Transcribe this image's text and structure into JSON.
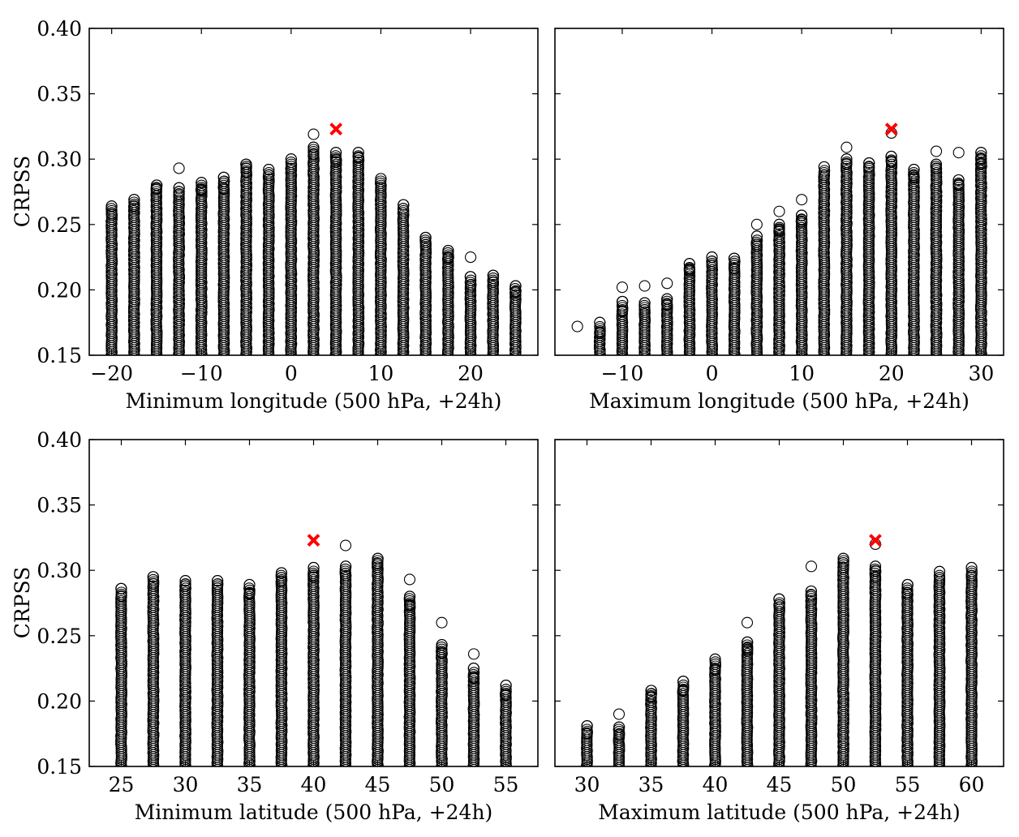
{
  "marker_colors": {
    "points": "#000000",
    "best": "#ff0000"
  },
  "chart_data": [
    {
      "type": "scatter",
      "panel": "top-left",
      "xlabel": "Minimum longitude (500 hPa, +24h)",
      "ylabel": "CRPSS",
      "xlim": [
        -22.5,
        27.5
      ],
      "ylim": [
        0.15,
        0.4
      ],
      "xticks": [
        -20,
        -10,
        0,
        10,
        20
      ],
      "yticks": [
        0.15,
        0.2,
        0.25,
        0.3,
        0.35,
        0.4
      ],
      "grid": false,
      "series": [
        {
          "marker": "open-circle",
          "columns": [
            {
              "x": -20.0,
              "top": 0.264,
              "outliers": []
            },
            {
              "x": -17.5,
              "top": 0.269,
              "outliers": []
            },
            {
              "x": -15.0,
              "top": 0.28,
              "outliers": []
            },
            {
              "x": -12.5,
              "top": 0.278,
              "outliers": [
                0.293
              ]
            },
            {
              "x": -10.0,
              "top": 0.282,
              "outliers": []
            },
            {
              "x": -7.5,
              "top": 0.286,
              "outliers": []
            },
            {
              "x": -5.0,
              "top": 0.296,
              "outliers": []
            },
            {
              "x": -2.5,
              "top": 0.292,
              "outliers": []
            },
            {
              "x": 0.0,
              "top": 0.3,
              "outliers": []
            },
            {
              "x": 2.5,
              "top": 0.309,
              "outliers": [
                0.319
              ]
            },
            {
              "x": 5.0,
              "top": 0.305,
              "outliers": []
            },
            {
              "x": 7.5,
              "top": 0.305,
              "outliers": []
            },
            {
              "x": 10.0,
              "top": 0.285,
              "outliers": []
            },
            {
              "x": 12.5,
              "top": 0.265,
              "outliers": []
            },
            {
              "x": 15.0,
              "top": 0.24,
              "outliers": []
            },
            {
              "x": 17.5,
              "top": 0.23,
              "outliers": []
            },
            {
              "x": 20.0,
              "top": 0.21,
              "outliers": [
                0.225
              ]
            },
            {
              "x": 22.5,
              "top": 0.211,
              "outliers": []
            },
            {
              "x": 25.0,
              "top": 0.203,
              "outliers": []
            }
          ]
        }
      ],
      "best": {
        "x": 5.0,
        "y": 0.323
      }
    },
    {
      "type": "scatter",
      "panel": "top-right",
      "xlabel": "Maximum longitude (500 hPa, +24h)",
      "ylabel": "",
      "xlim": [
        -17.5,
        32.5
      ],
      "ylim": [
        0.15,
        0.4
      ],
      "xticks": [
        -10,
        0,
        10,
        20,
        30
      ],
      "yticks": [
        0.15,
        0.2,
        0.25,
        0.3,
        0.35,
        0.4
      ],
      "grid": false,
      "series": [
        {
          "marker": "open-circle",
          "columns": [
            {
              "x": -15.0,
              "top": null,
              "outliers": [
                0.172
              ]
            },
            {
              "x": -12.5,
              "top": 0.175,
              "outliers": []
            },
            {
              "x": -10.0,
              "top": 0.191,
              "outliers": [
                0.202
              ]
            },
            {
              "x": -7.5,
              "top": 0.19,
              "outliers": [
                0.203
              ]
            },
            {
              "x": -5.0,
              "top": 0.193,
              "outliers": [
                0.205
              ]
            },
            {
              "x": -2.5,
              "top": 0.22,
              "outliers": []
            },
            {
              "x": 0.0,
              "top": 0.225,
              "outliers": []
            },
            {
              "x": 2.5,
              "top": 0.224,
              "outliers": []
            },
            {
              "x": 5.0,
              "top": 0.241,
              "outliers": [
                0.25
              ]
            },
            {
              "x": 7.5,
              "top": 0.25,
              "outliers": [
                0.26
              ]
            },
            {
              "x": 10.0,
              "top": 0.257,
              "outliers": [
                0.269
              ]
            },
            {
              "x": 12.5,
              "top": 0.294,
              "outliers": []
            },
            {
              "x": 15.0,
              "top": 0.3,
              "outliers": [
                0.309
              ]
            },
            {
              "x": 17.5,
              "top": 0.297,
              "outliers": []
            },
            {
              "x": 20.0,
              "top": 0.302,
              "outliers": [
                0.32
              ]
            },
            {
              "x": 22.5,
              "top": 0.292,
              "outliers": []
            },
            {
              "x": 25.0,
              "top": 0.296,
              "outliers": [
                0.306
              ]
            },
            {
              "x": 27.5,
              "top": 0.284,
              "outliers": [
                0.305
              ]
            },
            {
              "x": 30.0,
              "top": 0.305,
              "outliers": []
            }
          ]
        }
      ],
      "best": {
        "x": 20.0,
        "y": 0.323
      }
    },
    {
      "type": "scatter",
      "panel": "bottom-left",
      "xlabel": "Minimum latitude (500 hPa, +24h)",
      "ylabel": "CRPSS",
      "xlim": [
        22.5,
        57.5
      ],
      "ylim": [
        0.15,
        0.4
      ],
      "xticks": [
        25,
        30,
        35,
        40,
        45,
        50,
        55
      ],
      "yticks": [
        0.15,
        0.2,
        0.25,
        0.3,
        0.35,
        0.4
      ],
      "grid": false,
      "series": [
        {
          "marker": "open-circle",
          "columns": [
            {
              "x": 25.0,
              "top": 0.286,
              "outliers": []
            },
            {
              "x": 27.5,
              "top": 0.295,
              "outliers": []
            },
            {
              "x": 30.0,
              "top": 0.292,
              "outliers": []
            },
            {
              "x": 32.5,
              "top": 0.292,
              "outliers": []
            },
            {
              "x": 35.0,
              "top": 0.289,
              "outliers": []
            },
            {
              "x": 37.5,
              "top": 0.298,
              "outliers": []
            },
            {
              "x": 40.0,
              "top": 0.302,
              "outliers": []
            },
            {
              "x": 42.5,
              "top": 0.303,
              "outliers": [
                0.319
              ]
            },
            {
              "x": 45.0,
              "top": 0.309,
              "outliers": []
            },
            {
              "x": 47.5,
              "top": 0.28,
              "outliers": [
                0.293
              ]
            },
            {
              "x": 50.0,
              "top": 0.243,
              "outliers": [
                0.26
              ]
            },
            {
              "x": 52.5,
              "top": 0.225,
              "outliers": [
                0.236
              ]
            },
            {
              "x": 55.0,
              "top": 0.212,
              "outliers": []
            }
          ]
        }
      ],
      "best": {
        "x": 40.0,
        "y": 0.323
      }
    },
    {
      "type": "scatter",
      "panel": "bottom-right",
      "xlabel": "Maximum latitude (500 hPa, +24h)",
      "ylabel": "",
      "xlim": [
        27.5,
        62.5
      ],
      "ylim": [
        0.15,
        0.4
      ],
      "xticks": [
        30,
        35,
        40,
        45,
        50,
        55,
        60
      ],
      "yticks": [
        0.15,
        0.2,
        0.25,
        0.3,
        0.35,
        0.4
      ],
      "grid": false,
      "series": [
        {
          "marker": "open-circle",
          "columns": [
            {
              "x": 30.0,
              "top": 0.181,
              "outliers": []
            },
            {
              "x": 32.5,
              "top": 0.18,
              "outliers": [
                0.19
              ]
            },
            {
              "x": 35.0,
              "top": 0.208,
              "outliers": []
            },
            {
              "x": 37.5,
              "top": 0.215,
              "outliers": []
            },
            {
              "x": 40.0,
              "top": 0.232,
              "outliers": []
            },
            {
              "x": 42.5,
              "top": 0.245,
              "outliers": [
                0.26
              ]
            },
            {
              "x": 45.0,
              "top": 0.278,
              "outliers": []
            },
            {
              "x": 47.5,
              "top": 0.284,
              "outliers": [
                0.303
              ]
            },
            {
              "x": 50.0,
              "top": 0.309,
              "outliers": []
            },
            {
              "x": 52.5,
              "top": 0.303,
              "outliers": [
                0.32
              ]
            },
            {
              "x": 55.0,
              "top": 0.289,
              "outliers": []
            },
            {
              "x": 57.5,
              "top": 0.299,
              "outliers": []
            },
            {
              "x": 60.0,
              "top": 0.302,
              "outliers": []
            }
          ]
        }
      ],
      "best": {
        "x": 52.5,
        "y": 0.323
      }
    }
  ]
}
